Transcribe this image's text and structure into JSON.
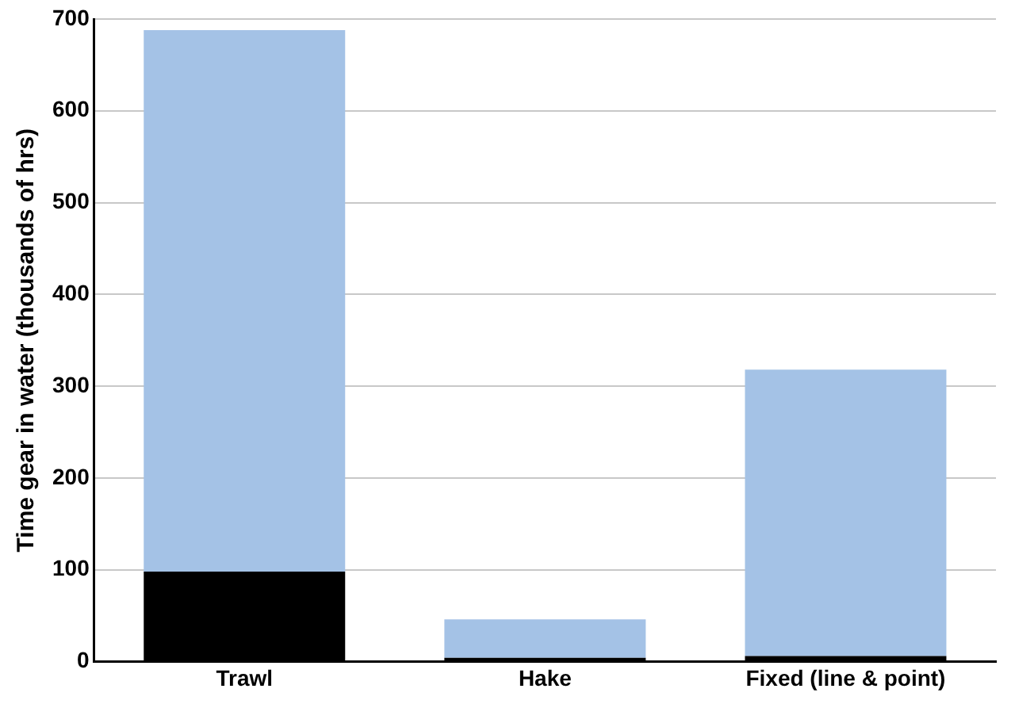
{
  "chart_data": {
    "type": "bar",
    "ylabel": "Time gear in water (thousands of hrs)",
    "categories": [
      "Trawl",
      "Hake",
      "Fixed (line & point)"
    ],
    "stacked": true,
    "series": [
      {
        "color": "#000000",
        "values": [
          98,
          4,
          6
        ]
      },
      {
        "color": "#a4c2e6",
        "values": [
          590,
          42,
          312
        ]
      }
    ],
    "ylim": [
      0,
      700
    ],
    "yticks": [
      0,
      100,
      200,
      300,
      400,
      500,
      600,
      700
    ],
    "grid": "y",
    "legend": false
  }
}
